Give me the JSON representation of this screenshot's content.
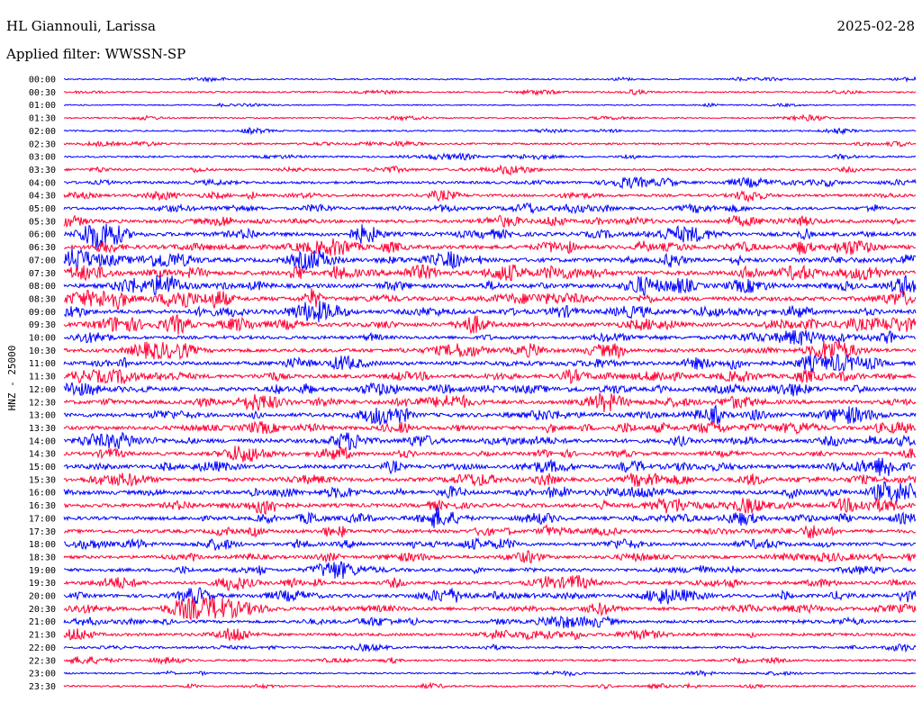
{
  "header": {
    "station": "HL Giannouli, Larissa",
    "date": "2025-02-28",
    "filter": "Applied filter: WWSSN-SP"
  },
  "chart_data": {
    "type": "line",
    "title": "HL Giannouli, Larissa",
    "ylabel": "HNZ - 25000",
    "colors": {
      "even_hour": "#0000ff",
      "odd_half_hour": "#ff0033"
    },
    "time_labels": [
      "00:00",
      "00:30",
      "01:00",
      "01:30",
      "02:00",
      "02:30",
      "03:00",
      "03:30",
      "04:00",
      "04:30",
      "05:00",
      "05:30",
      "06:00",
      "06:30",
      "07:00",
      "07:30",
      "08:00",
      "08:30",
      "09:00",
      "09:30",
      "10:00",
      "10:30",
      "11:00",
      "11:30",
      "12:00",
      "12:30",
      "13:00",
      "13:30",
      "14:00",
      "14:30",
      "15:00",
      "15:30",
      "16:00",
      "16:30",
      "17:00",
      "17:30",
      "18:00",
      "18:30",
      "19:00",
      "19:30",
      "20:00",
      "20:30",
      "21:00",
      "21:30",
      "22:00",
      "22:30",
      "23:00",
      "23:30"
    ],
    "activity_level": [
      0.15,
      0.2,
      0.1,
      0.15,
      0.2,
      0.25,
      0.25,
      0.35,
      0.45,
      0.45,
      0.5,
      0.6,
      0.75,
      0.75,
      0.8,
      0.85,
      0.8,
      0.8,
      0.75,
      0.75,
      0.6,
      0.7,
      0.7,
      0.7,
      0.75,
      0.75,
      0.75,
      0.7,
      0.8,
      0.6,
      0.75,
      0.7,
      0.75,
      0.7,
      0.65,
      0.65,
      0.6,
      0.55,
      0.6,
      0.6,
      0.65,
      0.65,
      0.5,
      0.5,
      0.35,
      0.3,
      0.2,
      0.25
    ]
  }
}
